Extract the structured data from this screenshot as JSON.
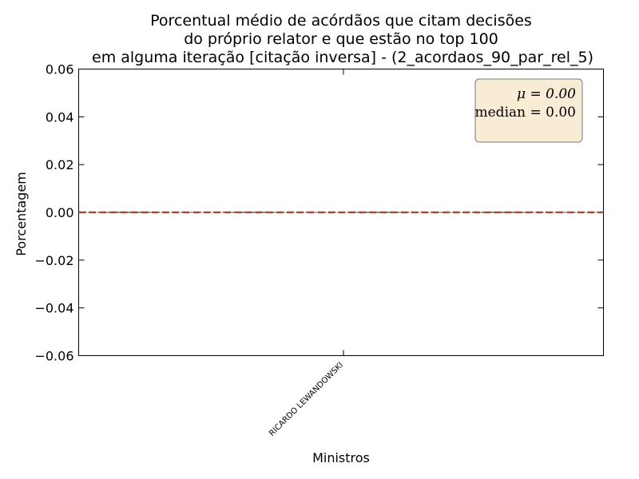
{
  "chart_data": {
    "type": "line",
    "title_lines": [
      "Porcentual médio de acórdãos que citam decisões",
      "do próprio relator e que estão no top 100",
      "em alguma iteração [citação inversa] - (2_acordaos_90_par_rel_5)"
    ],
    "xlabel": "Ministros",
    "ylabel": "Porcentagem",
    "categories": [
      "RICARDO LEWANDOWSKI"
    ],
    "values": [
      0.0
    ],
    "ylim": [
      -0.06,
      0.06
    ],
    "yticks": [
      0.06,
      0.04,
      0.02,
      0.0,
      -0.02,
      -0.04,
      -0.06
    ],
    "ytick_labels": [
      "0.06",
      "0.04",
      "0.02",
      "0.00",
      "−0.02",
      "−0.04",
      "−0.06"
    ],
    "mean_line": 0.0,
    "median_line": 0.0,
    "stats_box": {
      "mean_text": "μ = 0.00",
      "median_text": "median = 0.00",
      "placement": "top-right"
    },
    "colors": {
      "mean_line": "#c0392b",
      "median_line": "#2e8b57",
      "box_fill": "#f8ecd5",
      "box_border": "#7a7a7a"
    }
  }
}
